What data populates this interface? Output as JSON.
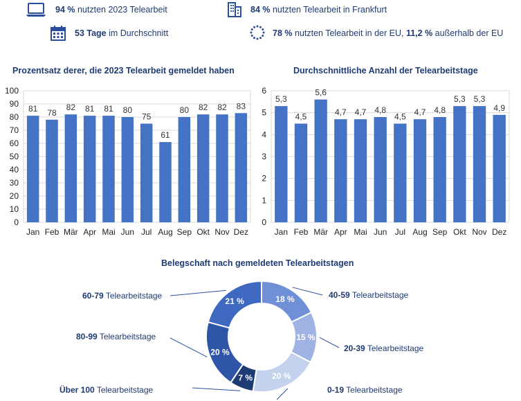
{
  "kpis": {
    "k1": {
      "strong": "94 %",
      "text": " nutzten 2023 Telearbeit"
    },
    "k2": {
      "strong": "84 %",
      "text": " nutzten Telearbeit in Frankfurt"
    },
    "k3": {
      "strong": "53 Tage",
      "text": " im Durchschnitt"
    },
    "k4": {
      "strong": "78 %",
      "text": " nutzten Telearbeit in der EU, ",
      "strong2": "11,2 %",
      "text2": " außerhalb der EU"
    }
  },
  "colors": {
    "bar": "#4472c4",
    "text": "#1f3b73",
    "grid": "#d9d9d9",
    "icon": "#2b4f9c"
  },
  "chart_data": [
    {
      "type": "bar",
      "title": "Prozentsatz derer, die 2023 Telearbeit gemeldet haben",
      "categories": [
        "Jan",
        "Feb",
        "Mär",
        "Apr",
        "Mai",
        "Jun",
        "Jul",
        "Aug",
        "Sep",
        "Okt",
        "Nov",
        "Dez"
      ],
      "values": [
        81,
        78,
        82,
        81,
        81,
        80,
        75,
        61,
        80,
        82,
        82,
        83
      ],
      "data_labels": [
        "81",
        "78",
        "82",
        "81",
        "81",
        "80",
        "75",
        "61",
        "80",
        "82",
        "82",
        "83"
      ],
      "ylim": [
        0,
        100
      ],
      "yticks": [
        "0",
        "10",
        "20",
        "30",
        "40",
        "50",
        "60",
        "70",
        "80",
        "90",
        "100"
      ],
      "grid": true
    },
    {
      "type": "bar",
      "title": "Durchschnittliche Anzahl der Telearbeitstage",
      "categories": [
        "Jan",
        "Feb",
        "Mär",
        "Apr",
        "Mai",
        "Jun",
        "Jul",
        "Aug",
        "Sep",
        "Okt",
        "Nov",
        "Dez"
      ],
      "values": [
        5.3,
        4.5,
        5.6,
        4.7,
        4.7,
        4.8,
        4.5,
        4.7,
        4.8,
        5.3,
        5.3,
        4.9
      ],
      "data_labels": [
        "5,3",
        "4,5",
        "5,6",
        "4,7",
        "4,7",
        "4,8",
        "4,5",
        "4,7",
        "4,8",
        "5,3",
        "5,3",
        "4,9"
      ],
      "ylim": [
        0,
        6
      ],
      "yticks": [
        "0",
        "1",
        "2",
        "3",
        "4",
        "5",
        "6"
      ],
      "grid": true
    },
    {
      "type": "pie",
      "title": "Belegschaft nach gemeldeten Telearbeitstagen",
      "slices": [
        {
          "range": "40-59",
          "suffix": " Telearbeitstage",
          "value": 18,
          "label": "18 %",
          "color": "#6f8fd6"
        },
        {
          "range": "20-39",
          "suffix": " Telearbeitstage",
          "value": 15,
          "label": "15 %",
          "color": "#9eb3e3"
        },
        {
          "range": "0-19",
          "suffix": " Telearbeitstage",
          "value": 20,
          "label": "20 %",
          "color": "#c5d2ee"
        },
        {
          "range": "Über 100",
          "suffix": " Telearbeitstage",
          "value": 7,
          "label": "7 %",
          "color": "#1f3b73"
        },
        {
          "range": "80-99",
          "suffix": " Telearbeitstage",
          "value": 20,
          "label": "20 %",
          "color": "#2e55a8"
        },
        {
          "range": "60-79",
          "suffix": " Telearbeitstage",
          "value": 21,
          "label": "21 %",
          "color": "#3f68c1"
        }
      ]
    }
  ]
}
